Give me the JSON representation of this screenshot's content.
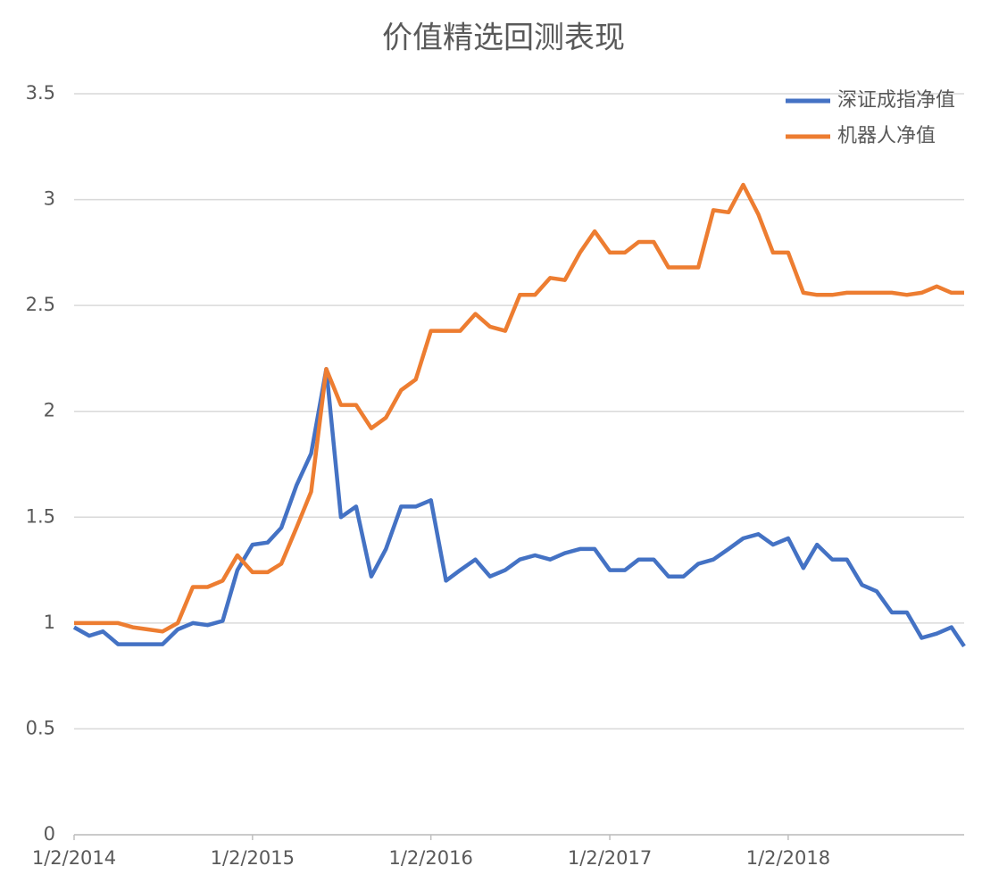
{
  "chart_data": {
    "type": "line",
    "title": "价值精选回测表现",
    "x": [
      "1/2/2014",
      "2/2/2014",
      "3/2/2014",
      "4/2/2014",
      "5/2/2014",
      "6/2/2014",
      "7/2/2014",
      "8/2/2014",
      "9/2/2014",
      "10/2/2014",
      "11/2/2014",
      "12/2/2014",
      "1/2/2015",
      "2/2/2015",
      "3/2/2015",
      "4/2/2015",
      "5/2/2015",
      "6/2/2015",
      "7/2/2015",
      "8/2/2015",
      "9/2/2015",
      "10/2/2015",
      "11/2/2015",
      "12/2/2015",
      "1/2/2016",
      "2/2/2016",
      "3/2/2016",
      "4/2/2016",
      "5/2/2016",
      "6/2/2016",
      "7/2/2016",
      "8/2/2016",
      "9/2/2016",
      "10/2/2016",
      "11/2/2016",
      "12/2/2016",
      "1/2/2017",
      "2/2/2017",
      "3/2/2017",
      "4/2/2017",
      "5/2/2017",
      "6/2/2017",
      "7/2/2017",
      "8/2/2017",
      "9/2/2017",
      "10/2/2017",
      "11/2/2017",
      "12/2/2017",
      "1/2/2018",
      "2/2/2018",
      "3/2/2018",
      "4/2/2018",
      "5/2/2018",
      "6/2/2018",
      "7/2/2018",
      "8/2/2018",
      "9/2/2018",
      "10/2/2018",
      "11/2/2018",
      "12/2/2018",
      "12/28/2018"
    ],
    "series": [
      {
        "name": "深证成指净值",
        "color": "#4472c4",
        "values": [
          0.98,
          0.94,
          0.96,
          0.9,
          0.9,
          0.9,
          0.9,
          0.97,
          1.0,
          0.99,
          1.01,
          1.25,
          1.37,
          1.38,
          1.45,
          1.65,
          1.8,
          2.2,
          1.5,
          1.55,
          1.22,
          1.35,
          1.55,
          1.55,
          1.58,
          1.2,
          1.25,
          1.3,
          1.22,
          1.25,
          1.3,
          1.32,
          1.3,
          1.33,
          1.35,
          1.35,
          1.25,
          1.25,
          1.3,
          1.3,
          1.22,
          1.22,
          1.28,
          1.3,
          1.35,
          1.4,
          1.42,
          1.37,
          1.4,
          1.26,
          1.37,
          1.3,
          1.3,
          1.18,
          1.15,
          1.05,
          1.05,
          0.93,
          0.95,
          0.98,
          0.89
        ]
      },
      {
        "name": "机器人净值",
        "color": "#ed7d31",
        "values": [
          1.0,
          1.0,
          1.0,
          1.0,
          0.98,
          0.97,
          0.96,
          1.0,
          1.17,
          1.17,
          1.2,
          1.32,
          1.24,
          1.24,
          1.28,
          1.45,
          1.62,
          2.2,
          2.03,
          2.03,
          1.92,
          1.97,
          2.1,
          2.15,
          2.38,
          2.38,
          2.38,
          2.46,
          2.4,
          2.38,
          2.55,
          2.55,
          2.63,
          2.62,
          2.75,
          2.85,
          2.75,
          2.75,
          2.8,
          2.8,
          2.68,
          2.68,
          2.68,
          2.95,
          2.94,
          3.07,
          2.93,
          2.75,
          2.75,
          2.56,
          2.55,
          2.55,
          2.56,
          2.56,
          2.56,
          2.56,
          2.55,
          2.56,
          2.59,
          2.56,
          2.56
        ]
      }
    ],
    "xlim": [
      "1/2/2014",
      "12/28/2018"
    ],
    "xticks": [
      "1/2/2014",
      "1/2/2015",
      "1/2/2016",
      "1/2/2017",
      "1/2/2018"
    ],
    "ylim": [
      0,
      3.5
    ],
    "yticks": [
      0,
      0.5,
      1,
      1.5,
      2,
      2.5,
      3,
      3.5
    ],
    "grid": true,
    "legend": "top-right"
  }
}
